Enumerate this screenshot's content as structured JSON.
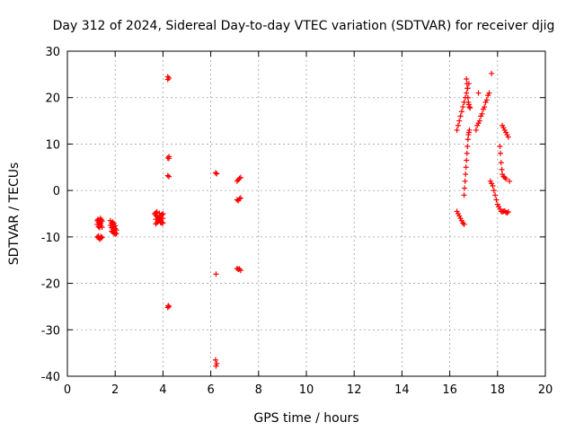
{
  "chart_data": {
    "type": "scatter",
    "title": "Day 312 of 2024, Sidereal Day-to-day VTEC variation (SDTVAR) for receiver djig",
    "xlabel": "GPS time / hours",
    "ylabel": "SDTVAR / TECUs",
    "xlim": [
      0,
      20
    ],
    "ylim": [
      -40,
      30
    ],
    "xticks": [
      0,
      2,
      4,
      6,
      8,
      10,
      12,
      14,
      16,
      18,
      20
    ],
    "yticks": [
      -40,
      -30,
      -20,
      -10,
      0,
      10,
      20,
      30
    ],
    "grid": true,
    "marker": "+",
    "series": [
      {
        "name": "SDTVAR",
        "color": "#ff0000",
        "x": [
          1.25,
          1.3,
          1.35,
          1.4,
          1.45,
          1.3,
          1.35,
          1.4,
          1.25,
          1.45,
          1.28,
          1.32,
          1.38,
          1.42,
          1.25,
          1.3,
          1.35,
          1.4,
          1.45,
          1.3,
          1.4,
          1.8,
          1.85,
          1.9,
          1.95,
          2.0,
          2.05,
          1.85,
          1.9,
          1.95,
          2.0,
          1.8,
          1.85,
          1.9,
          1.95,
          2.0,
          2.05,
          1.9,
          1.95,
          2.0,
          3.65,
          3.7,
          3.75,
          3.8,
          3.85,
          3.9,
          3.95,
          4.0,
          3.7,
          3.75,
          3.8,
          3.85,
          3.9,
          3.95,
          3.7,
          3.75,
          3.8,
          3.85,
          3.9,
          3.95,
          4.0,
          3.7,
          3.8,
          3.9,
          4.0,
          3.75,
          3.85,
          3.95,
          4.2,
          4.25,
          4.2,
          4.25,
          4.2,
          4.25,
          4.2,
          4.25,
          4.22,
          4.2,
          4.25,
          6.2,
          6.25,
          6.22,
          6.2,
          6.25,
          6.22,
          7.1,
          7.15,
          7.2,
          7.25,
          7.1,
          7.15,
          7.2,
          7.25,
          7.1,
          7.15,
          7.2,
          7.25,
          16.3,
          16.35,
          16.4,
          16.45,
          16.5,
          16.55,
          16.6,
          16.65,
          16.7,
          16.75,
          16.8,
          16.3,
          16.35,
          16.4,
          16.45,
          16.5,
          16.55,
          16.6,
          16.6,
          16.62,
          16.64,
          16.66,
          16.68,
          16.7,
          16.72,
          16.74,
          16.76,
          16.78,
          16.8,
          16.82,
          16.7,
          16.72,
          16.74,
          16.76,
          16.78,
          16.8,
          16.82,
          16.85,
          17.1,
          17.15,
          17.2,
          17.25,
          17.3,
          17.35,
          17.4,
          17.45,
          17.5,
          17.55,
          17.6,
          17.65,
          17.7,
          17.75,
          17.8,
          17.85,
          17.9,
          17.95,
          18.0,
          18.05,
          18.1,
          18.15,
          18.2,
          18.25,
          18.3,
          18.35,
          18.4,
          18.45,
          18.1,
          18.12,
          18.15,
          18.18,
          18.2,
          18.25,
          18.3,
          18.35,
          18.2,
          18.25,
          18.3,
          18.35,
          18.4,
          18.45,
          18.5,
          17.2,
          17.75
        ],
        "y": [
          -6.5,
          -6.8,
          -7.2,
          -7.0,
          -6.6,
          -7.8,
          -8.0,
          -7.5,
          -7.3,
          -7.9,
          -6.2,
          -6.4,
          -6.0,
          -6.3,
          -10.0,
          -10.2,
          -10.5,
          -10.3,
          -10.1,
          -9.8,
          -9.9,
          -6.5,
          -7.0,
          -7.3,
          -7.8,
          -8.2,
          -8.5,
          -8.8,
          -9.0,
          -9.2,
          -9.4,
          -7.5,
          -8.0,
          -8.3,
          -8.6,
          -9.0,
          -9.3,
          -6.8,
          -7.1,
          -7.6,
          -5.0,
          -5.3,
          -5.6,
          -5.9,
          -6.2,
          -6.5,
          -6.8,
          -7.0,
          -4.8,
          -5.5,
          -6.0,
          -6.4,
          -6.7,
          -7.0,
          -7.2,
          -6.9,
          -6.5,
          -6.1,
          -5.7,
          -5.3,
          -5.0,
          -6.2,
          -6.6,
          -6.9,
          -6.0,
          -4.6,
          -4.9,
          -5.2,
          24.5,
          24.2,
          23.9,
          7.3,
          7.0,
          6.9,
          3.2,
          3.0,
          -24.8,
          -25.2,
          -25.0,
          3.8,
          3.6,
          -18.0,
          -36.5,
          -37.3,
          -37.8,
          2.0,
          2.3,
          2.6,
          2.8,
          -2.0,
          -2.2,
          -1.8,
          -1.6,
          -16.8,
          -17.0,
          -16.9,
          -17.2,
          13.0,
          14.0,
          15.0,
          16.0,
          17.0,
          18.0,
          19.0,
          20.0,
          21.0,
          22.0,
          23.0,
          -4.5,
          -5.0,
          -5.5,
          -6.0,
          -6.5,
          -7.0,
          -7.3,
          -1.0,
          0.5,
          2.0,
          3.5,
          5.0,
          6.5,
          8.0,
          9.5,
          11.0,
          12.0,
          12.5,
          13.0,
          24.0,
          23.0,
          22.0,
          20.0,
          19.0,
          18.5,
          18.0,
          17.8,
          13.0,
          14.0,
          14.5,
          15.0,
          16.0,
          16.5,
          17.5,
          18.0,
          19.0,
          19.5,
          20.5,
          21.0,
          2.0,
          1.5,
          1.0,
          0.0,
          -1.0,
          -2.0,
          -3.0,
          -3.5,
          -4.0,
          -4.5,
          -4.6,
          -4.5,
          -4.4,
          -4.7,
          -4.8,
          -4.6,
          9.5,
          8.0,
          6.0,
          4.5,
          3.5,
          3.0,
          2.8,
          2.5,
          14.0,
          13.5,
          13.0,
          12.5,
          12.0,
          11.5,
          2.0,
          21.0,
          25.2
        ]
      }
    ]
  }
}
